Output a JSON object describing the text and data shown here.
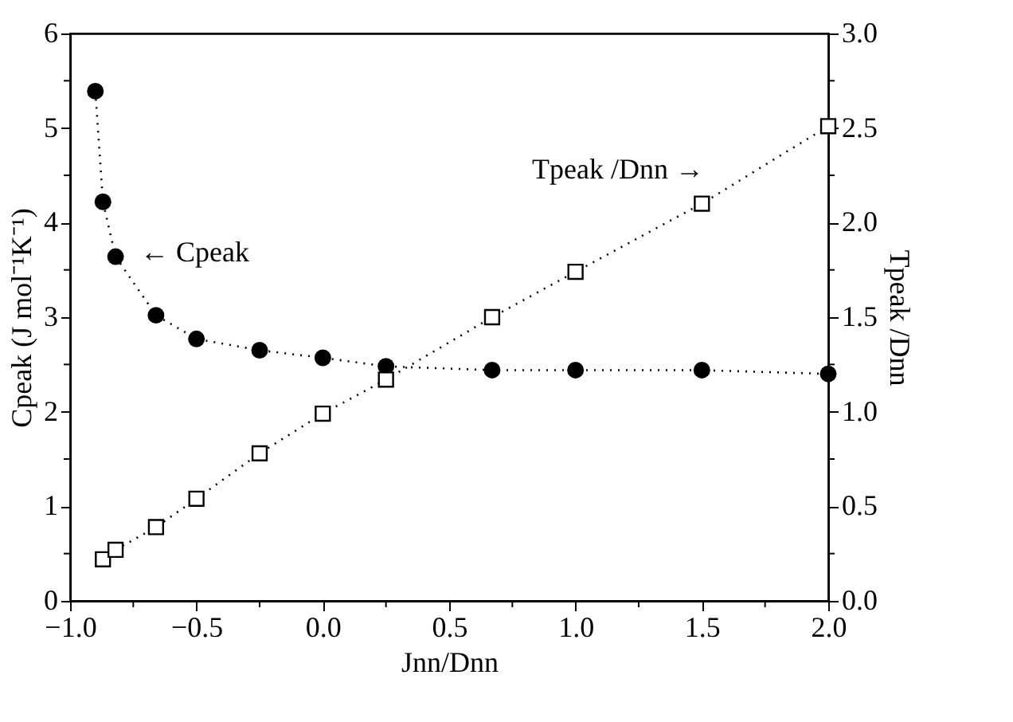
{
  "chart_data": {
    "type": "line",
    "xlabel": "Jnn/Dnn",
    "ylabel": "Cpeak (J mol⁻¹K⁻¹)",
    "y2label": "Tpeak /Dnn",
    "series": [
      {
        "marker": "circle",
        "color": "#000000",
        "x": [
          -0.9,
          -0.87,
          -0.82,
          -0.66,
          -0.5,
          -0.25,
          0.0,
          0.25,
          0.67,
          1.0,
          1.5,
          2.0
        ],
        "values": [
          5.39,
          4.22,
          3.64,
          3.02,
          2.77,
          2.65,
          2.57,
          2.48,
          2.44,
          2.44,
          2.44,
          2.4
        ]
      },
      {
        "marker": "square",
        "color": "#000000",
        "axis": "y2",
        "x": [
          -0.87,
          -0.82,
          -0.66,
          -0.5,
          -0.25,
          0.0,
          0.25,
          0.67,
          1.0,
          1.5,
          2.0
        ],
        "values": [
          0.22,
          0.27,
          0.39,
          0.54,
          0.78,
          0.99,
          1.17,
          1.5,
          1.74,
          2.1,
          2.51
        ]
      }
    ],
    "line_style": "dotted",
    "grid": false,
    "xlim": [
      -1,
      2
    ],
    "ylim": [
      0,
      6
    ],
    "y2lim": [
      0,
      3
    ],
    "xticks": [
      {
        "value": -1,
        "label": "−1.0"
      },
      {
        "value": -0.75,
        "label": null
      },
      {
        "value": -0.5,
        "label": "−0.5"
      },
      {
        "value": -0.25,
        "label": null
      },
      {
        "value": 0,
        "label": "0.0"
      },
      {
        "value": 0.25,
        "label": null
      },
      {
        "value": 0.5,
        "label": "0.5"
      },
      {
        "value": 0.75,
        "label": null
      },
      {
        "value": 1,
        "label": "1.0"
      },
      {
        "value": 1.25,
        "label": null
      },
      {
        "value": 1.5,
        "label": "1.5"
      },
      {
        "value": 1.75,
        "label": null
      },
      {
        "value": 2,
        "label": "2.0"
      }
    ],
    "yticks": [
      0,
      {
        "value": 0.5,
        "label": null
      },
      1,
      {
        "value": 1.5,
        "label": null
      },
      2,
      {
        "value": 2.5,
        "label": null
      },
      3,
      {
        "value": 3.5,
        "label": null
      },
      4,
      {
        "value": 4.5,
        "label": null
      },
      5,
      {
        "value": 5.5,
        "label": null
      },
      6
    ],
    "y2ticks": [
      {
        "value": 0,
        "label": "0.0"
      },
      {
        "value": 0.25,
        "label": null
      },
      {
        "value": 0.5,
        "label": "0.5"
      },
      {
        "value": 0.75,
        "label": null
      },
      {
        "value": 1,
        "label": "1.0"
      },
      {
        "value": 1.25,
        "label": null
      },
      {
        "value": 1.5,
        "label": "1.5"
      },
      {
        "value": 1.75,
        "label": null
      },
      {
        "value": 2,
        "label": "2.0"
      },
      {
        "value": 2.25,
        "label": null
      },
      {
        "value": 2.5,
        "label": "2.5"
      },
      {
        "value": 2.75,
        "label": null
      },
      {
        "value": 3,
        "label": "3.0"
      }
    ],
    "annotations": [
      "← Cpeak",
      "Tpeak /Dnn →"
    ]
  }
}
